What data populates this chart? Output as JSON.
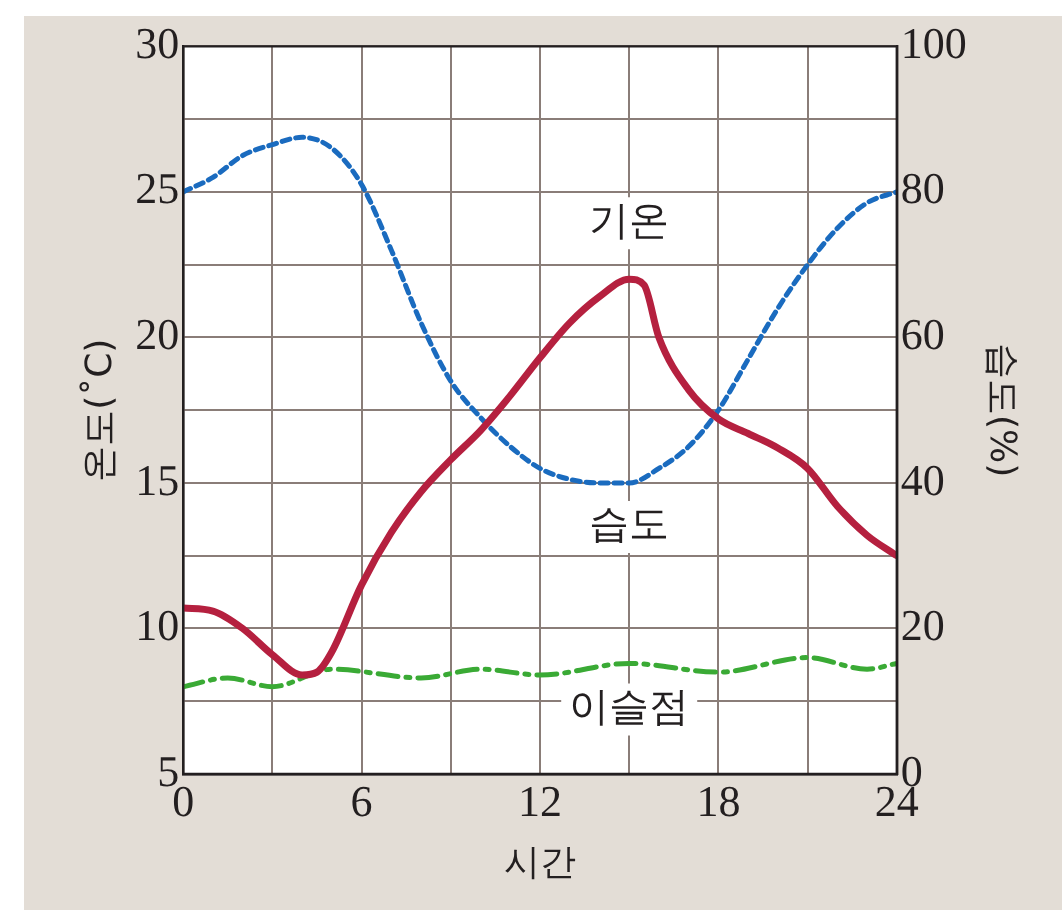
{
  "chart_data": {
    "type": "line",
    "xlabel": "시간",
    "ylabel": "온도(˚C)",
    "y2label": "습도(%)",
    "xlim": [
      0,
      24
    ],
    "xticks": [
      0,
      {
        "value": 3,
        "label": null
      },
      6,
      {
        "value": 9,
        "label": null
      },
      12,
      {
        "value": 15,
        "label": null
      },
      18,
      {
        "value": 21,
        "label": null
      },
      24
    ],
    "ylim": [
      5,
      30
    ],
    "yticks": [
      5,
      {
        "value": 7.5,
        "label": null
      },
      10,
      {
        "value": 12.5,
        "label": null
      },
      15,
      {
        "value": 17.5,
        "label": null
      },
      20,
      {
        "value": 22.5,
        "label": null
      },
      25,
      {
        "value": 27.5,
        "label": null
      },
      30
    ],
    "y2lim": [
      0,
      100
    ],
    "y2ticks": [
      0,
      20,
      40,
      60,
      80,
      100
    ],
    "grid": true,
    "legend": false,
    "marker": "none",
    "series": [
      {
        "name": "기온",
        "color": "#b5203f",
        "line_style": "solid",
        "x": [
          0,
          1,
          2,
          3,
          4,
          4.5,
          5,
          6,
          7,
          8,
          9,
          10,
          11,
          12,
          13,
          14,
          15,
          15.5,
          16,
          17,
          18,
          19,
          20,
          21,
          22,
          23,
          24
        ],
        "values": [
          10.7,
          10.6,
          10.0,
          9.1,
          8.4,
          8.5,
          9.2,
          11.5,
          13.3,
          14.7,
          15.8,
          16.8,
          18.0,
          19.3,
          20.5,
          21.4,
          22.0,
          21.8,
          20.0,
          18.2,
          17.2,
          16.7,
          16.2,
          15.5,
          14.2,
          13.2,
          12.5
        ]
      },
      {
        "name": "습도",
        "color": "#1a6bbf",
        "line_style": "dotted",
        "axis": "y2",
        "x": [
          0,
          1,
          2,
          3,
          4,
          5,
          6,
          7,
          8,
          9,
          10,
          11,
          12,
          13,
          14,
          15,
          16,
          17,
          18,
          19,
          20,
          21,
          22,
          23,
          24
        ],
        "values": [
          80,
          82,
          85,
          86.5,
          87.5,
          86,
          81,
          72,
          62,
          54,
          49,
          45,
          42,
          40.5,
          40,
          40,
          42,
          45,
          50,
          57,
          64,
          70,
          75,
          78.5,
          80
        ]
      },
      {
        "name": "이슬점",
        "color": "#3aaa35",
        "line_style": "dashed",
        "x": [
          0,
          1.5,
          3,
          5,
          8,
          10,
          12,
          15,
          18,
          21,
          23,
          24
        ],
        "values": [
          8.0,
          8.3,
          8.0,
          8.6,
          8.3,
          8.6,
          8.4,
          8.8,
          8.5,
          9.0,
          8.6,
          8.8
        ]
      }
    ]
  }
}
